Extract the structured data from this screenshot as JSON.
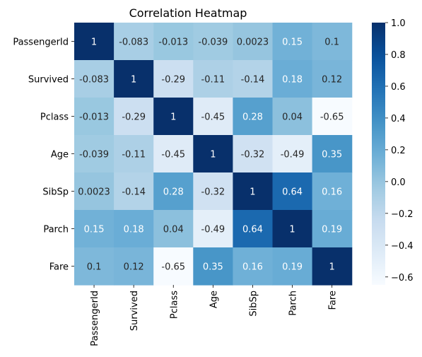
{
  "chart_data": {
    "type": "heatmap",
    "title": "Correlation Heatmap",
    "xlabel": "",
    "ylabel": "",
    "rows": [
      "PassengerId",
      "Survived",
      "Pclass",
      "Age",
      "SibSp",
      "Parch",
      "Fare"
    ],
    "columns": [
      "PassengerId",
      "Survived",
      "Pclass",
      "Age",
      "SibSp",
      "Parch",
      "Fare"
    ],
    "values": [
      [
        1,
        -0.083,
        -0.013,
        -0.039,
        0.0023,
        0.15,
        0.1
      ],
      [
        -0.083,
        1,
        -0.29,
        -0.11,
        -0.14,
        0.18,
        0.12
      ],
      [
        -0.013,
        -0.29,
        1,
        -0.45,
        0.28,
        0.04,
        -0.65
      ],
      [
        -0.039,
        -0.11,
        -0.45,
        1,
        -0.32,
        -0.49,
        0.35
      ],
      [
        0.0023,
        -0.14,
        0.28,
        -0.32,
        1,
        0.64,
        0.16
      ],
      [
        0.15,
        0.18,
        0.04,
        -0.49,
        0.64,
        1,
        0.19
      ],
      [
        0.1,
        0.12,
        -0.65,
        0.35,
        0.16,
        0.19,
        1
      ]
    ],
    "labels": [
      [
        "1",
        "-0.083",
        "-0.013",
        "-0.039",
        "0.0023",
        "0.15",
        "0.1"
      ],
      [
        "-0.083",
        "1",
        "-0.29",
        "-0.11",
        "-0.14",
        "0.18",
        "0.12"
      ],
      [
        "-0.013",
        "-0.29",
        "1",
        "-0.45",
        "0.28",
        "0.04",
        "-0.65"
      ],
      [
        "-0.039",
        "-0.11",
        "-0.45",
        "1",
        "-0.32",
        "-0.49",
        "0.35"
      ],
      [
        "0.0023",
        "-0.14",
        "0.28",
        "-0.32",
        "1",
        "0.64",
        "0.16"
      ],
      [
        "0.15",
        "0.18",
        "0.04",
        "-0.49",
        "0.64",
        "1",
        "0.19"
      ],
      [
        "0.1",
        "0.12",
        "-0.65",
        "0.35",
        "0.16",
        "0.19",
        "1"
      ]
    ],
    "colormap": "Blues",
    "colorbar": {
      "range": [
        -0.65,
        1
      ],
      "ticks": [
        -0.6,
        -0.4,
        -0.2,
        0,
        0.2,
        0.4,
        0.6,
        0.8,
        1.0
      ],
      "tick_labels": [
        "−0.6",
        "−0.4",
        "−0.2",
        "0.0",
        "0.2",
        "0.4",
        "0.6",
        "0.8",
        "1.0"
      ]
    }
  }
}
